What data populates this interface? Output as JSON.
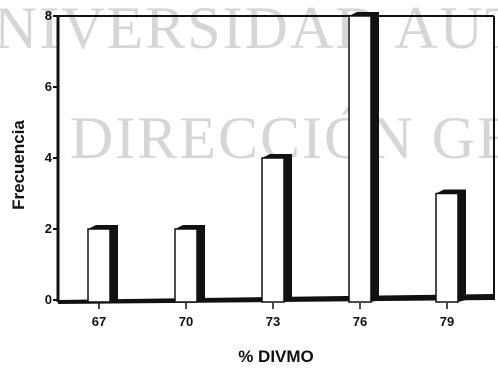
{
  "watermark": {
    "line1": "NIVERSIDAD AUTO",
    "line2": "DIRECCIÓN GENE"
  },
  "chart_data": {
    "type": "bar",
    "title": "",
    "xlabel": "% DIVMO",
    "ylabel": "Frecuencia",
    "categories": [
      "67",
      "70",
      "73",
      "76",
      "79"
    ],
    "values": [
      2,
      2,
      4,
      8,
      3
    ],
    "ylim": [
      0,
      8
    ],
    "yticks": [
      "0",
      "2",
      "4",
      "6",
      "8"
    ],
    "grid": false,
    "legend": "none",
    "colors": {
      "bar_face": "#ffffff",
      "bar_shadow": "#111111",
      "axis": "#111111",
      "watermark": "#d6d6d6"
    }
  }
}
